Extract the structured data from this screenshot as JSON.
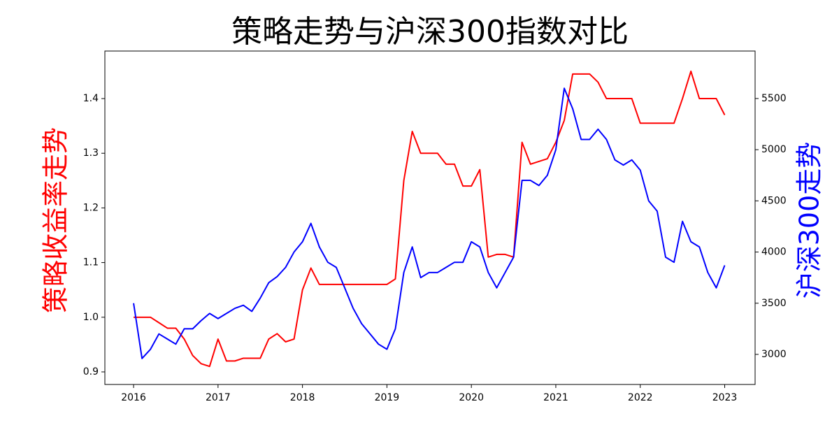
{
  "chart_data": {
    "type": "line",
    "title": "策略走势与沪深300指数对比",
    "ylabel": "策略收益率走势",
    "y2label": "沪深300走势",
    "x": [
      2016.0,
      2016.1,
      2016.2,
      2016.3,
      2016.4,
      2016.5,
      2016.6,
      2016.7,
      2016.8,
      2016.9,
      2017.0,
      2017.1,
      2017.2,
      2017.3,
      2017.4,
      2017.5,
      2017.6,
      2017.7,
      2017.8,
      2017.9,
      2018.0,
      2018.1,
      2018.2,
      2018.3,
      2018.4,
      2018.5,
      2018.6,
      2018.7,
      2018.8,
      2018.9,
      2019.0,
      2019.1,
      2019.2,
      2019.3,
      2019.4,
      2019.5,
      2019.6,
      2019.7,
      2019.8,
      2019.9,
      2020.0,
      2020.1,
      2020.2,
      2020.3,
      2020.4,
      2020.5,
      2020.6,
      2020.7,
      2020.8,
      2020.9,
      2021.0,
      2021.1,
      2021.2,
      2021.3,
      2021.4,
      2021.5,
      2021.6,
      2021.7,
      2021.8,
      2021.9,
      2022.0,
      2022.1,
      2022.2,
      2022.3,
      2022.4,
      2022.5,
      2022.6,
      2022.7,
      2022.8,
      2022.9,
      2023.0
    ],
    "series": [
      {
        "name": "策略",
        "color": "#ff0000",
        "axis": "y",
        "values": [
          1.0,
          1.0,
          1.0,
          0.99,
          0.98,
          0.98,
          0.96,
          0.93,
          0.915,
          0.91,
          0.96,
          0.92,
          0.92,
          0.925,
          0.925,
          0.925,
          0.96,
          0.97,
          0.955,
          0.96,
          1.05,
          1.09,
          1.06,
          1.06,
          1.06,
          1.06,
          1.06,
          1.06,
          1.06,
          1.06,
          1.06,
          1.07,
          1.25,
          1.34,
          1.3,
          1.3,
          1.3,
          1.28,
          1.28,
          1.24,
          1.24,
          1.27,
          1.11,
          1.115,
          1.115,
          1.11,
          1.32,
          1.28,
          1.285,
          1.29,
          1.32,
          1.36,
          1.445,
          1.445,
          1.445,
          1.43,
          1.4,
          1.4,
          1.4,
          1.4,
          1.355,
          1.355,
          1.355,
          1.355,
          1.355,
          1.4,
          1.45,
          1.4,
          1.4,
          1.4,
          1.37
        ]
      },
      {
        "name": "沪深300",
        "color": "#0000ff",
        "axis": "y2",
        "values": [
          3500,
          2960,
          3050,
          3200,
          3150,
          3100,
          3250,
          3250,
          3330,
          3400,
          3350,
          3400,
          3450,
          3480,
          3420,
          3550,
          3700,
          3760,
          3850,
          4000,
          4100,
          4280,
          4050,
          3900,
          3850,
          3650,
          3450,
          3300,
          3200,
          3100,
          3050,
          3250,
          3800,
          4050,
          3750,
          3800,
          3800,
          3850,
          3900,
          3900,
          4100,
          4050,
          3800,
          3650,
          3800,
          3950,
          4700,
          4700,
          4650,
          4750,
          5000,
          5600,
          5400,
          5100,
          5100,
          5200,
          5100,
          4900,
          4850,
          4900,
          4800,
          4500,
          4400,
          3950,
          3900,
          4300,
          4100,
          4050,
          3800,
          3650,
          3870
        ]
      }
    ],
    "xlim": [
      2015.66,
      2023.36
    ],
    "xticks": [
      2016,
      2017,
      2018,
      2019,
      2020,
      2021,
      2022,
      2023
    ],
    "ylim": [
      0.877,
      1.487
    ],
    "yticks": [
      {
        "value": 0.9,
        "label": "0.9"
      },
      {
        "value": 1.0,
        "label": "1.0"
      },
      1.1,
      1.2,
      1.3,
      1.4
    ],
    "y2lim": [
      2706,
      5964
    ],
    "y2ticks": [
      3000,
      3500,
      4000,
      4500,
      5000,
      5500
    ]
  }
}
